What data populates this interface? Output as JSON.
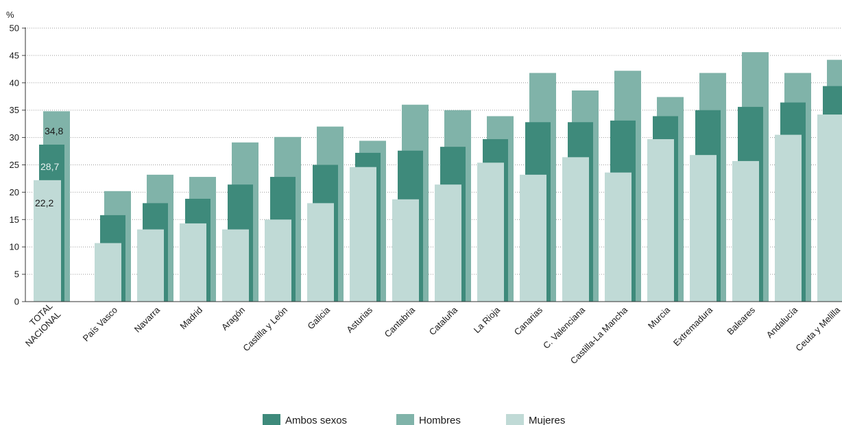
{
  "chart_data": {
    "type": "bar",
    "ylabel": "%",
    "ylim": [
      0,
      50
    ],
    "yticks": [
      0,
      5,
      10,
      15,
      20,
      25,
      30,
      35,
      40,
      45,
      50
    ],
    "grid": "horizontal dotted",
    "legend_position": "bottom-center",
    "categories": [
      [
        "TOTAL",
        "NACIONAL"
      ],
      [
        "País Vasco"
      ],
      [
        "Navarra"
      ],
      [
        "Madrid"
      ],
      [
        "Aragón"
      ],
      [
        "Castilla y León"
      ],
      [
        "Galicia"
      ],
      [
        "Asturias"
      ],
      [
        "Cantabria"
      ],
      [
        "Cataluña"
      ],
      [
        "La Rioja"
      ],
      [
        "Canarias"
      ],
      [
        "C. Valenciana"
      ],
      [
        "Castilla-La Mancha"
      ],
      [
        "Murcia"
      ],
      [
        "Extremadura"
      ],
      [
        "Baleares"
      ],
      [
        "Andalucía"
      ],
      [
        "Ceuta y Melilla"
      ]
    ],
    "series": [
      {
        "name": "Ambos sexos",
        "color": "#3e8a7b",
        "values": [
          28.7,
          15.8,
          18.0,
          18.8,
          21.4,
          22.8,
          25.0,
          27.2,
          27.6,
          28.3,
          29.7,
          32.8,
          32.8,
          33.1,
          33.9,
          35.0,
          35.6,
          36.4,
          39.4
        ]
      },
      {
        "name": "Hombres",
        "color": "#80b3a9",
        "values": [
          34.8,
          20.2,
          23.2,
          22.8,
          29.1,
          30.1,
          32.0,
          29.4,
          36.0,
          35.0,
          33.9,
          41.8,
          38.6,
          42.2,
          37.4,
          41.8,
          45.6,
          41.8,
          44.2
        ]
      },
      {
        "name": "Mujeres",
        "color": "#c0dad6",
        "values": [
          22.2,
          10.7,
          13.2,
          14.3,
          13.2,
          15.0,
          18.0,
          24.6,
          18.7,
          21.4,
          25.4,
          23.2,
          26.4,
          23.6,
          29.7,
          26.8,
          25.7,
          30.5,
          34.2
        ]
      }
    ],
    "data_labels": [
      "34,8",
      "28,7",
      "22,2"
    ],
    "legend": [
      "Ambos sexos",
      "Hombres",
      "Mujeres"
    ]
  }
}
